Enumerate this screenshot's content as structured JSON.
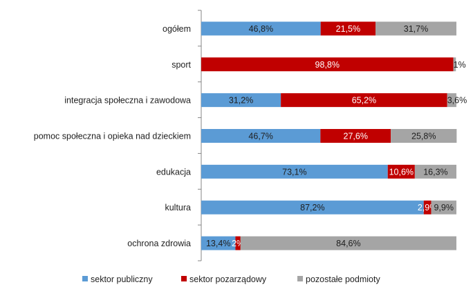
{
  "chart_data": {
    "type": "bar",
    "orientation": "horizontal",
    "stacked": true,
    "xlim": [
      0,
      100
    ],
    "grid": false,
    "legend_placement": "bottom",
    "categories": [
      "ogółem",
      "sport",
      "integracja społeczna i zawodowa",
      "pomoc społeczna  i opieka nad dzieckiem",
      "edukacja",
      "kultura",
      "ochrona zdrowia"
    ],
    "series": [
      {
        "name": "sektor publiczny",
        "color": "#5b9bd5",
        "label_color": "#1f1f1f",
        "values": [
          46.8,
          0,
          31.2,
          46.7,
          73.1,
          87.2,
          13.4
        ],
        "labels": [
          "46,8%",
          "",
          "31,2%",
          "46,7%",
          "73,1%",
          "87,2%",
          "13,4%"
        ]
      },
      {
        "name": "sektor pozarządowy",
        "color": "#c00000",
        "label_color": "#ffffff",
        "values": [
          21.5,
          98.8,
          65.2,
          27.6,
          10.6,
          2.9,
          2
        ],
        "labels": [
          "21,5%",
          "98,8%",
          "65,2%",
          "27,6%",
          "10,6%",
          "2,9%",
          "2%"
        ]
      },
      {
        "name": "pozostałe podmioty",
        "color": "#a5a5a5",
        "label_color": "#1f1f1f",
        "values": [
          31.7,
          1,
          3.6,
          25.8,
          16.3,
          9.9,
          84.6
        ],
        "labels": [
          "31,7%",
          "1%",
          "3,6%",
          "25,8%",
          "16,3%",
          "9,9%",
          "84,6%"
        ]
      }
    ]
  }
}
